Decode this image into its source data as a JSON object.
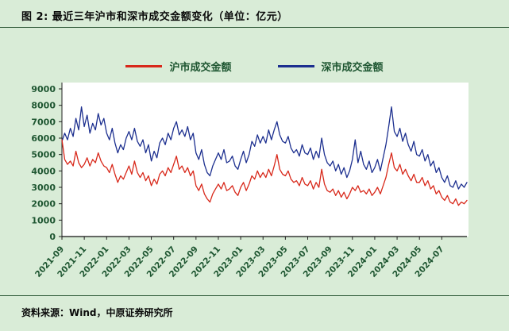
{
  "header": {
    "title": "图 2: 最近三年沪市和深市成交金额变化（单位：亿元）"
  },
  "footer": {
    "source": "资料来源：Wind，中原证券研究所"
  },
  "legend": [
    {
      "label": "沪市成交金额",
      "color": "#d8281a"
    },
    {
      "label": "深市成交金额",
      "color": "#1c2f8f"
    }
  ],
  "chart_data": {
    "type": "line",
    "title": "最近三年沪市和深市成交金额变化（单位：亿元）",
    "xlabel": "",
    "ylabel": "",
    "ylim": [
      0,
      9000
    ],
    "ytick_interval": 1000,
    "grid": false,
    "legend_position": "top",
    "axis_color": "#1e5631",
    "x_tick_labels": [
      "2021-09",
      "2021-11",
      "2022-01",
      "2022-03",
      "2022-05",
      "2022-07",
      "2022-09",
      "2022-11",
      "2023-01",
      "2023-03",
      "2023-05",
      "2023-07",
      "2023-09",
      "2023-11",
      "2024-01",
      "2024-03",
      "2024-05",
      "2024-07"
    ],
    "tick_every_points": 8,
    "points_per_month": 4,
    "series": [
      {
        "id": "shanghai-turnover",
        "name": "沪市成交金额",
        "color": "#d8281a",
        "values": [
          5900,
          4700,
          4400,
          4600,
          4300,
          5200,
          4500,
          4200,
          4400,
          4800,
          4300,
          4700,
          4500,
          5100,
          4600,
          4300,
          4200,
          3900,
          4400,
          3800,
          3300,
          3700,
          3500,
          3900,
          4300,
          3800,
          4600,
          3900,
          3600,
          3900,
          3400,
          3700,
          3100,
          3500,
          3200,
          3800,
          4000,
          3700,
          4200,
          3900,
          4400,
          4900,
          4100,
          4300,
          3900,
          4200,
          3700,
          4000,
          3100,
          2800,
          3200,
          2600,
          2300,
          2100,
          2600,
          2900,
          3200,
          2900,
          3300,
          2800,
          2900,
          3100,
          2700,
          2500,
          3000,
          3300,
          2800,
          3200,
          3700,
          3500,
          4000,
          3600,
          3900,
          3600,
          4100,
          3700,
          4300,
          5000,
          4100,
          3800,
          3700,
          4000,
          3500,
          3300,
          3400,
          3100,
          3600,
          3200,
          3100,
          3400,
          2900,
          3300,
          3000,
          4100,
          3200,
          2800,
          2700,
          2900,
          2500,
          2800,
          2400,
          2700,
          2300,
          2600,
          3000,
          2800,
          3100,
          2700,
          2800,
          2600,
          2900,
          2500,
          2700,
          3000,
          2600,
          3100,
          3600,
          4400,
          5100,
          4200,
          4000,
          4400,
          3800,
          4100,
          3700,
          3400,
          3800,
          3300,
          3300,
          3600,
          3100,
          3400,
          2900,
          3100,
          2600,
          2800,
          2400,
          2200,
          2500,
          2100,
          2000,
          2300,
          1900,
          2100,
          2000,
          2200
        ]
      },
      {
        "id": "shenzhen-turnover",
        "name": "深市成交金额",
        "color": "#1c2f8f",
        "values": [
          5800,
          6300,
          5900,
          6600,
          6100,
          7200,
          6500,
          7900,
          6700,
          7400,
          6300,
          6900,
          6500,
          7500,
          6800,
          7200,
          6300,
          5900,
          6600,
          5700,
          5100,
          5600,
          5300,
          6000,
          6400,
          5900,
          6600,
          5800,
          5500,
          5900,
          5100,
          5600,
          4600,
          5200,
          4800,
          5700,
          6000,
          5600,
          6300,
          5900,
          6600,
          7000,
          6200,
          6500,
          6100,
          6700,
          5900,
          6300,
          5100,
          4700,
          5300,
          4400,
          3900,
          3700,
          4300,
          4700,
          5100,
          4700,
          5300,
          4500,
          4600,
          4900,
          4300,
          4100,
          4700,
          5200,
          4500,
          5000,
          5800,
          5500,
          6200,
          5700,
          6100,
          5700,
          6500,
          5900,
          6500,
          7000,
          6200,
          5800,
          5700,
          6100,
          5400,
          5100,
          5300,
          4900,
          5600,
          5100,
          5000,
          5400,
          4700,
          5200,
          4800,
          6000,
          5000,
          4500,
          4300,
          4600,
          4000,
          4400,
          3800,
          4200,
          3600,
          4000,
          4700,
          5900,
          4500,
          5200,
          4400,
          4100,
          4600,
          3900,
          4200,
          4700,
          4000,
          4800,
          5600,
          6700,
          7900,
          6400,
          6100,
          6600,
          5800,
          6300,
          5600,
          5200,
          5800,
          5000,
          4900,
          5300,
          4600,
          5000,
          4300,
          4600,
          3900,
          4200,
          3600,
          3300,
          3700,
          3100,
          3000,
          3400,
          2900,
          3200,
          3000,
          3300
        ]
      }
    ]
  }
}
